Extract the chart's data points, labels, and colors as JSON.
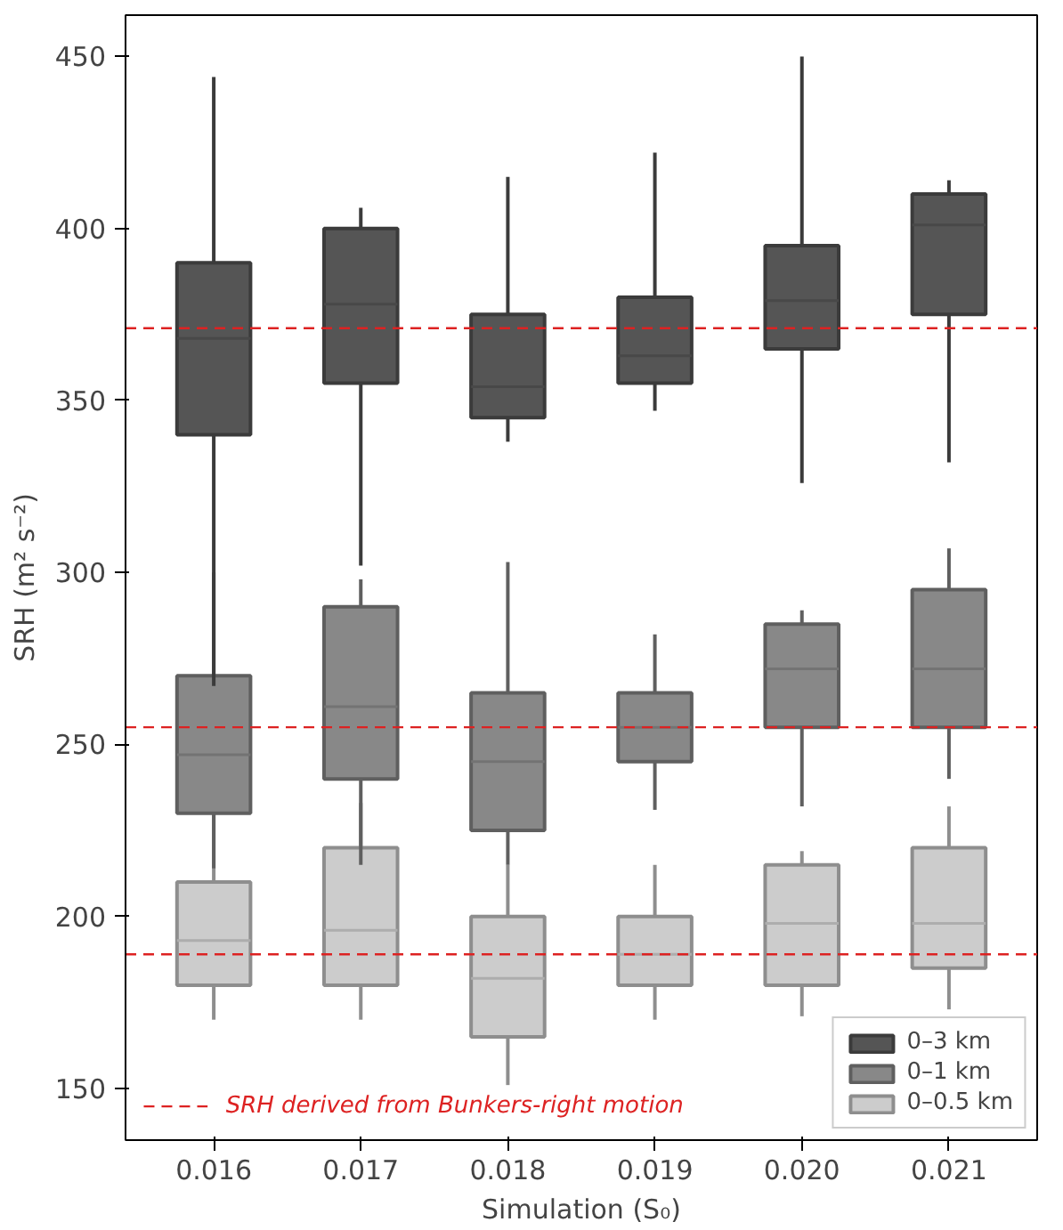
{
  "chart_data": {
    "type": "box",
    "xlabel": "Simulation (S₀)",
    "ylabel": "SRH (m² s⁻²)",
    "categories": [
      "0.016",
      "0.017",
      "0.018",
      "0.019",
      "0.020",
      "0.021"
    ],
    "ylim": [
      135,
      462
    ],
    "yticks": [
      150,
      200,
      250,
      300,
      350,
      400,
      450
    ],
    "grid": false,
    "legend": "bottom right",
    "series": [
      {
        "name": "0–3 km",
        "color": "#555555",
        "boxes": [
          {
            "low": 267,
            "q1": 340,
            "median": 368,
            "q3": 390,
            "high": 444
          },
          {
            "low": 302,
            "q1": 355,
            "median": 378,
            "q3": 400,
            "high": 406
          },
          {
            "low": 338,
            "q1": 345,
            "median": 354,
            "q3": 375,
            "high": 415
          },
          {
            "low": 347,
            "q1": 355,
            "median": 363,
            "q3": 380,
            "high": 422
          },
          {
            "low": 326,
            "q1": 365,
            "median": 379,
            "q3": 395,
            "high": 450
          },
          {
            "low": 332,
            "q1": 375,
            "median": 401,
            "q3": 410,
            "high": 414
          }
        ]
      },
      {
        "name": "0–1 km",
        "color": "#888888",
        "boxes": [
          {
            "low": 214,
            "q1": 230,
            "median": 247,
            "q3": 270,
            "high": 300
          },
          {
            "low": 215,
            "q1": 240,
            "median": 261,
            "q3": 290,
            "high": 298
          },
          {
            "low": 215,
            "q1": 225,
            "median": 245,
            "q3": 265,
            "high": 303
          },
          {
            "low": 231,
            "q1": 245,
            "median": 255,
            "q3": 265,
            "high": 282
          },
          {
            "low": 232,
            "q1": 255,
            "median": 272,
            "q3": 285,
            "high": 289
          },
          {
            "low": 240,
            "q1": 255,
            "median": 272,
            "q3": 295,
            "high": 307
          }
        ]
      },
      {
        "name": "0–0.5 km",
        "color": "#cccccc",
        "boxes": [
          {
            "low": 170,
            "q1": 180,
            "median": 193,
            "q3": 210,
            "high": 230
          },
          {
            "low": 170,
            "q1": 180,
            "median": 196,
            "q3": 220,
            "high": 233
          },
          {
            "low": 151,
            "q1": 165,
            "median": 182,
            "q3": 200,
            "high": 215
          },
          {
            "low": 170,
            "q1": 180,
            "median": 189,
            "q3": 200,
            "high": 215
          },
          {
            "low": 171,
            "q1": 180,
            "median": 198,
            "q3": 215,
            "high": 219
          },
          {
            "low": 173,
            "q1": 185,
            "median": 198,
            "q3": 220,
            "high": 232
          }
        ]
      }
    ],
    "ref_lines": [
      {
        "axis": "y",
        "value": 371,
        "label": "SRH derived from Bunkers-right motion",
        "color": "#dd2222",
        "line_style": "dashed"
      },
      {
        "axis": "y",
        "value": 255,
        "color": "#dd2222",
        "line_style": "dashed"
      },
      {
        "axis": "y",
        "value": 189,
        "color": "#dd2222",
        "line_style": "dashed"
      }
    ]
  }
}
